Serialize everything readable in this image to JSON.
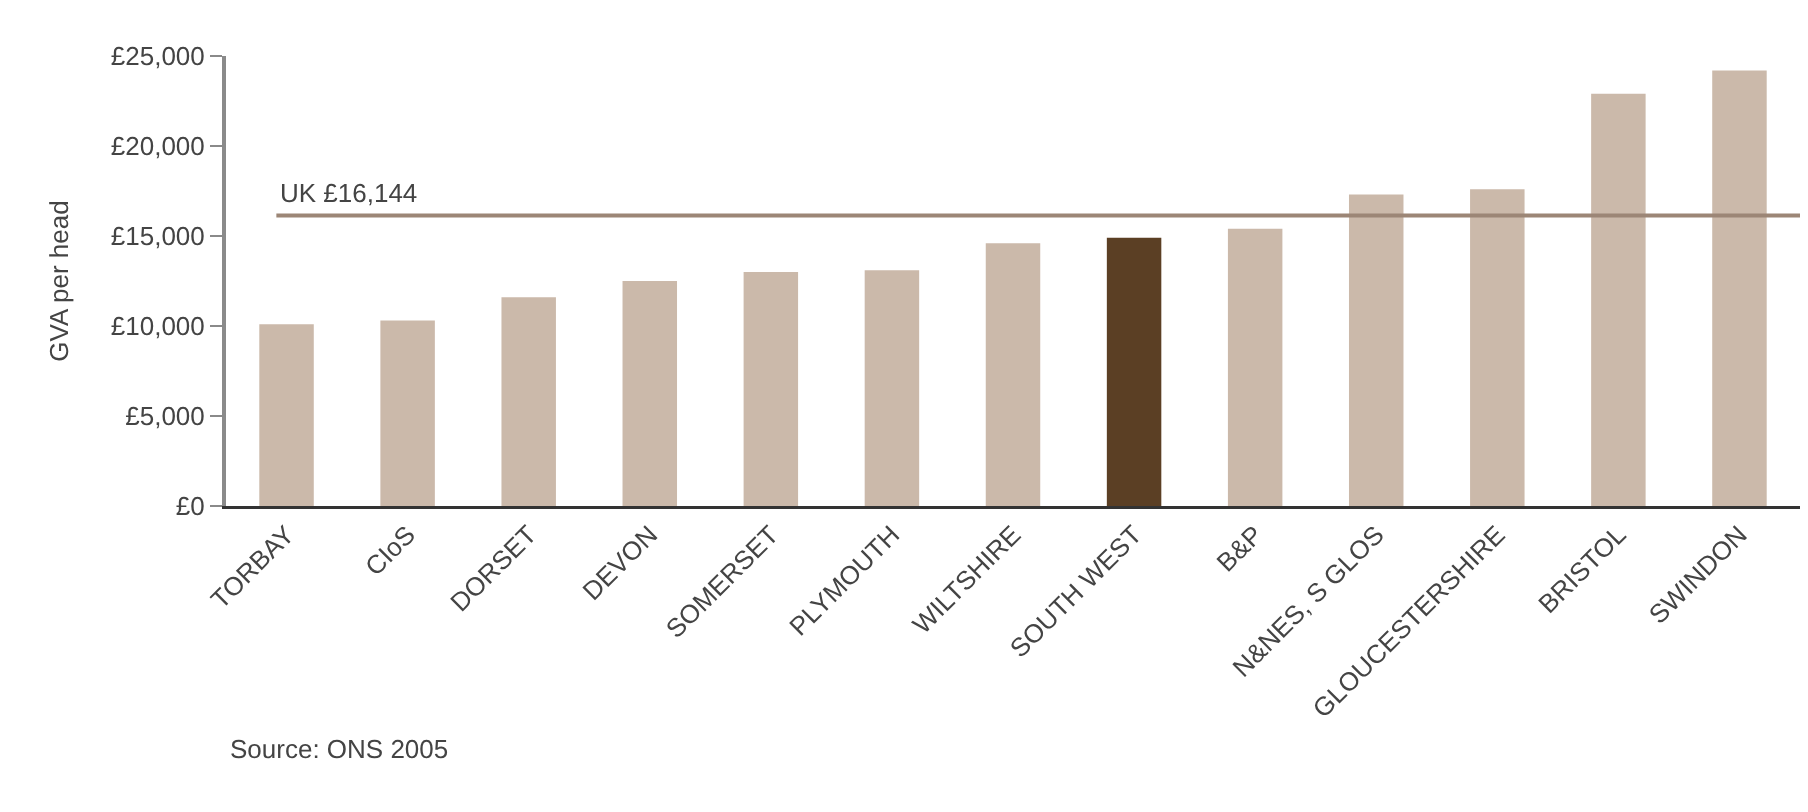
{
  "chart_data": {
    "type": "bar",
    "ylabel": "GVA per head",
    "categories": [
      "TORBAY",
      "CIoS",
      "DORSET",
      "DEVON",
      "SOMERSET",
      "PLYMOUTH",
      "WILTSHIRE",
      "SOUTH WEST",
      "B&P",
      "N&NES, S GLOS",
      "GLOUCESTERSHIRE",
      "BRISTOL",
      "SWINDON"
    ],
    "values": [
      10100,
      10300,
      11600,
      12500,
      13000,
      13100,
      14600,
      14900,
      15400,
      17300,
      17600,
      22900,
      24200
    ],
    "colors": [
      "#cbb9aa",
      "#cbb9aa",
      "#cbb9aa",
      "#cbb9aa",
      "#cbb9aa",
      "#cbb9aa",
      "#cbb9aa",
      "#5b3f24",
      "#cbb9aa",
      "#cbb9aa",
      "#cbb9aa",
      "#cbb9aa",
      "#cbb9aa"
    ],
    "ylim": [
      0,
      25000
    ],
    "yticks": [
      {
        "value": 0,
        "label": "£0"
      },
      {
        "value": 5000,
        "label": "£5,000"
      },
      {
        "value": 10000,
        "label": "£10,000"
      },
      {
        "value": 15000,
        "label": "£15,000"
      },
      {
        "value": 20000,
        "label": "£20,000"
      },
      {
        "value": 25000,
        "label": "£25,000"
      }
    ],
    "ref_lines": [
      {
        "axis": "y",
        "value": 16144,
        "label": "UK £16,144",
        "color": "#9c8676"
      }
    ],
    "annotations": [
      "Source: ONS 2005"
    ],
    "grid": false
  }
}
